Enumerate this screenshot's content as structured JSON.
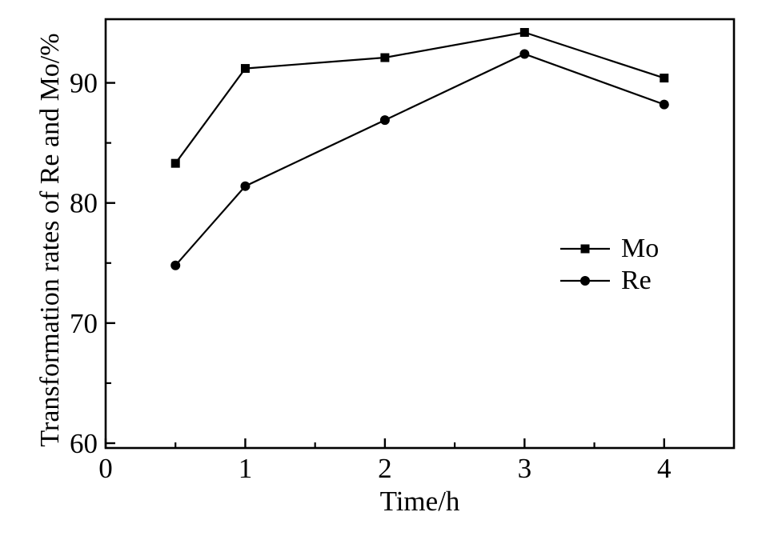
{
  "figure": {
    "background": "#ffffff",
    "foreground": "#000000"
  },
  "chart_data": {
    "type": "line",
    "title": "",
    "xlabel": "Time/h",
    "ylabel": "Transformation rates of Re and Mo/%",
    "x": [
      0.5,
      1,
      2,
      3,
      4
    ],
    "series": [
      {
        "name": "Mo",
        "marker": "square",
        "color": "#000000",
        "values": [
          83.3,
          91.2,
          92.1,
          94.2,
          90.4
        ]
      },
      {
        "name": "Re",
        "marker": "circle",
        "color": "#000000",
        "values": [
          74.8,
          81.4,
          86.9,
          92.4,
          88.2
        ]
      }
    ],
    "xlim": [
      0,
      4.5
    ],
    "ylim": [
      59.6,
      95.3
    ],
    "x_major_ticks": [
      0,
      1,
      2,
      3,
      4
    ],
    "x_minor_ticks": [
      0.5,
      1.5,
      2.5,
      3.5
    ],
    "y_major_ticks": [
      60,
      70,
      80,
      90
    ],
    "y_minor_ticks": [
      65,
      75,
      85
    ],
    "grid": false,
    "legend_position": "inside-right-middle",
    "legend_border": false
  }
}
